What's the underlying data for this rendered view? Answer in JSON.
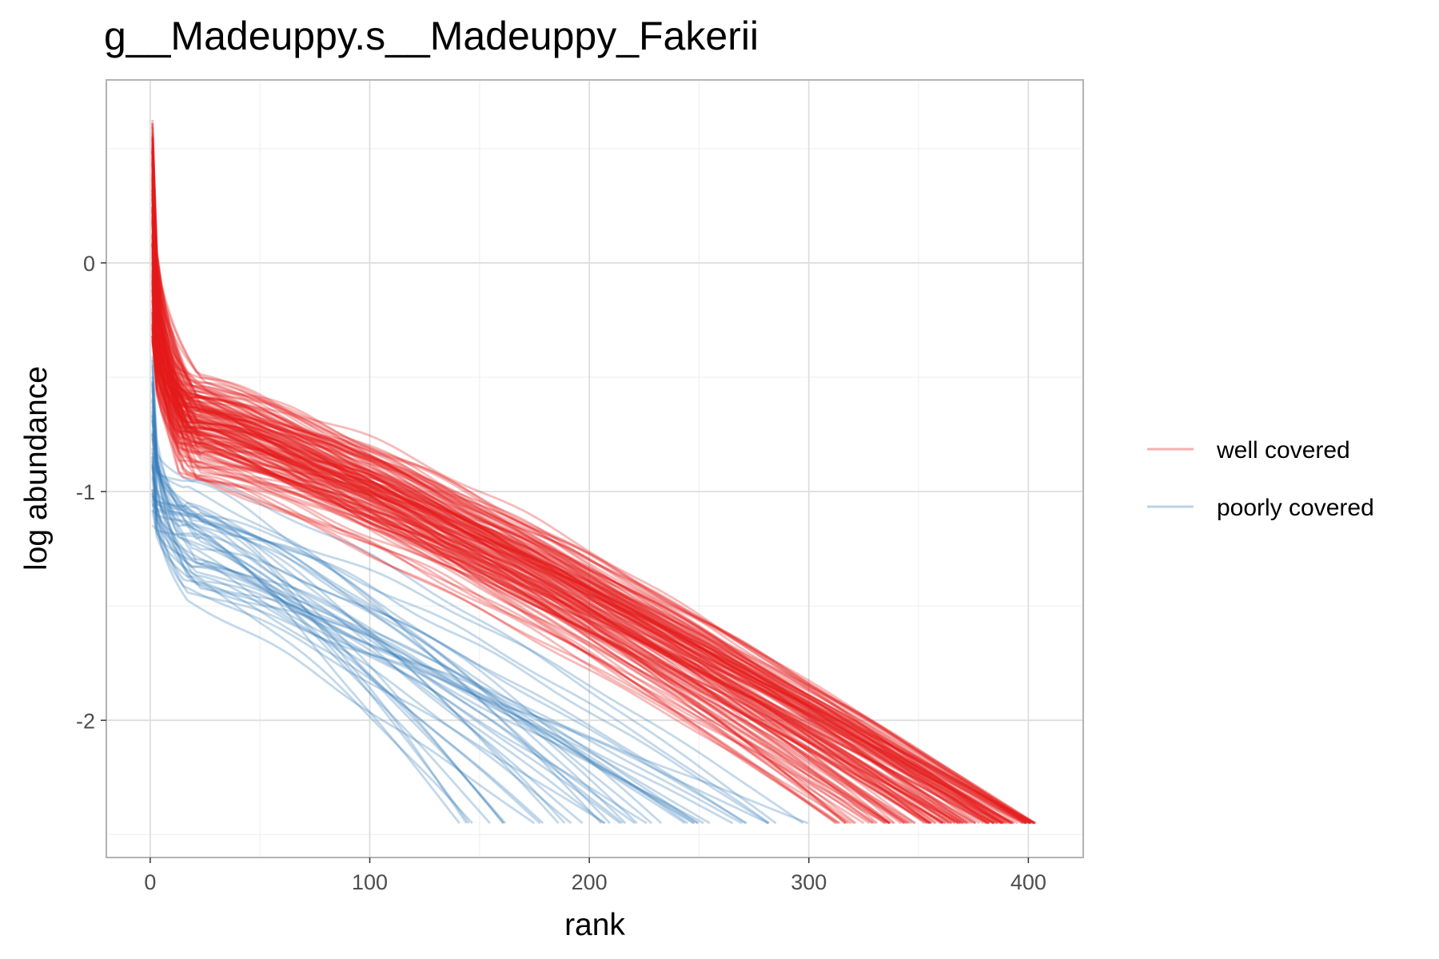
{
  "chart_data": {
    "type": "line",
    "title": "g__Madeuppy.s__Madeuppy_Fakerii",
    "xlabel": "rank",
    "ylabel": "log abundance",
    "xlim": [
      -20,
      425
    ],
    "ylim": [
      -2.6,
      0.8
    ],
    "x_ticks": [
      0,
      100,
      200,
      300,
      400
    ],
    "x_tick_labels": [
      "0",
      "100",
      "200",
      "300",
      "400"
    ],
    "y_ticks": [
      0,
      -1,
      -2
    ],
    "y_tick_labels": [
      "0",
      "-1",
      "-2"
    ],
    "grid": true,
    "legend_position": "right",
    "floor_value": -2.45,
    "series_groups": [
      {
        "name": "well covered",
        "color": "#e41a1c",
        "line_count": 150,
        "rank_range": [
          310,
          405
        ],
        "start_range": [
          -0.35,
          0.65
        ],
        "mid_values": {
          "rank_10": -0.55,
          "rank_100": -1.2,
          "rank_200": -1.6,
          "rank_300": -2.0
        }
      },
      {
        "name": "poorly covered",
        "color": "#377eb8",
        "line_count": 45,
        "rank_range": [
          140,
          300
        ],
        "start_range": [
          -1.25,
          -0.4
        ],
        "mid_values": {
          "rank_10": -1.1,
          "rank_100": -1.8,
          "rank_200": -2.35
        }
      }
    ]
  }
}
